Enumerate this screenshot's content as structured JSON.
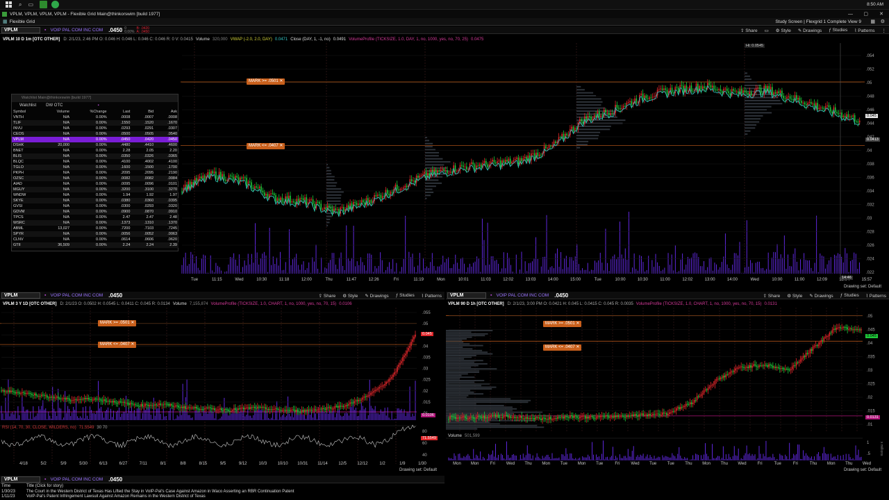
{
  "os": {
    "window_title": "VPLM, VPLM, VPLM, VPLM - Flexible Grid Main@thinkorswim [build 1977]",
    "time": "8:50 AM"
  },
  "app": {
    "layout_tab": "Flexible Grid",
    "study_screen": "Study Screen | Flexgrid 1 Complete View 9"
  },
  "toolbar": {
    "share": "Share",
    "style": "Style",
    "drawings": "Drawings",
    "studies": "Studies",
    "patterns": "Patterns",
    "drawing_set": "Drawing set: Default"
  },
  "main_chart": {
    "symbol": "VPLM",
    "description": "VOIP PAL COM INC COM",
    "price": ".0450",
    "change_top": "0",
    "change_bottom": "0.00%",
    "bid_ask_top": "B: .0420",
    "bid_ask_bottom": "A: .0450",
    "title": "VPLM 10 D 1m [OTC OTHER]",
    "ohlc": "D: 2/1/23, 2:46 PM   O: 0.046   H: 0.046   L: 0.046   C: 0.046   R: 0   V: 0.0415",
    "volume_label": "Volume",
    "volume_value": "320,000",
    "vwap": "VWAP (-2.0, 2.0, DAY)",
    "vwap_value": "0.0471",
    "close_study": "Close (DAY, 1, -1, no)",
    "close_value": "0.0491",
    "volprofile": "VolumeProfile (TICKSIZE, 1.0, DAY, 1, no, 1000, yes, no, 70, 25)",
    "volprofile_value": "0.0475",
    "mark_upper": "MARK >= .0501",
    "mark_lower": "MARK <= .0407",
    "hi_label": "Hi: 0.0545",
    "price_tag_1": "0.045",
    "price_tag_2": "0.0413",
    "time_tag": "14:46",
    "y_ticks": [
      ".054",
      ".052",
      ".05",
      ".048",
      ".046",
      ".044",
      ".042",
      ".04",
      ".038",
      ".036",
      ".034",
      ".032",
      ".03",
      ".028",
      ".026",
      ".024",
      ".022"
    ],
    "x_ticks": [
      "Tue",
      "11:15",
      "Wed",
      "10:30",
      "11:18",
      "12:00",
      "Thu",
      "11:47",
      "12:26",
      "Fri",
      "11:19",
      "Mon",
      "10:01",
      "11:03",
      "12:02",
      "13:03",
      "14:00",
      "15:00",
      "Tue",
      "10:00",
      "10:30",
      "11:00",
      "12:02",
      "13:00",
      "14:00",
      "Wed",
      "10:00",
      "11:00",
      "12:09",
      "13:04",
      "15:57"
    ]
  },
  "watchlist": {
    "window_title": "Watchlist Main@thinkorswim [build 1977]",
    "name": "Watchlist",
    "list_name": "DW OTC",
    "columns": [
      "Symbol",
      "Volume",
      "%Change",
      "Last",
      "Bid",
      "Ask"
    ],
    "rows": [
      [
        "VNTH",
        "N/A",
        "0.00%",
        ".0008",
        ".0007",
        ".0008"
      ],
      [
        "TLIF",
        "N/A",
        "0.00%",
        ".1550",
        ".1520",
        ".1670"
      ],
      [
        "INVU",
        "N/A",
        "0.00%",
        ".0293",
        ".0291",
        ".0307"
      ],
      [
        "CEOS",
        "N/A",
        "0.00%",
        ".0500",
        ".0505",
        ".0540"
      ],
      [
        "VPLM",
        "N/A",
        "0.00%",
        ".0450",
        ".0420",
        ".0450"
      ],
      [
        "DSHK",
        "20,000",
        "0.00%",
        ".4480",
        ".4410",
        ".4600"
      ],
      [
        "BNET",
        "N/A",
        "0.00%",
        "2.28",
        "2.05",
        "2.20"
      ],
      [
        "BLIS",
        "N/A",
        "0.00%",
        ".0350",
        ".0326",
        ".0365"
      ],
      [
        "BLQC",
        "N/A",
        "0.00%",
        ".4100",
        ".4002",
        ".4100"
      ],
      [
        "TGLO",
        "N/A",
        "0.00%",
        ".1600",
        ".1500",
        ".1700"
      ],
      [
        "PKPH",
        "N/A",
        "0.00%",
        ".2095",
        ".2095",
        ".2190"
      ],
      [
        "OZSC",
        "N/A",
        "0.00%",
        ".0082",
        ".0082",
        ".0084"
      ],
      [
        "AIAD",
        "N/A",
        "0.00%",
        ".0095",
        ".0096",
        ".0101"
      ],
      [
        "MGUY",
        "N/A",
        "0.00%",
        ".3200",
        ".3100",
        ".3270"
      ],
      [
        "WNDW",
        "N/A",
        "0.00%",
        "1.94",
        "1.92",
        "1.97"
      ],
      [
        "SKYE",
        "N/A",
        "0.00%",
        ".0380",
        ".0360",
        ".0395"
      ],
      [
        "GVSI",
        "N/A",
        "0.00%",
        ".0300",
        ".0293",
        ".0320"
      ],
      [
        "GDVM",
        "N/A",
        "0.00%",
        ".0900",
        ".0870",
        ".0910"
      ],
      [
        "TPCS",
        "N/A",
        "0.00%",
        "2.47",
        "2.47",
        "2.48"
      ],
      [
        "WSRC",
        "N/A",
        "0.00%",
        ".1373",
        ".1310",
        ".1370"
      ],
      [
        "ABML",
        "13,027",
        "0.00%",
        ".7200",
        ".7103",
        ".7245"
      ],
      [
        "SPYR",
        "N/A",
        "0.00%",
        ".0056",
        ".0052",
        ".0063"
      ],
      [
        "CLNV",
        "N/A",
        "0.00%",
        ".0614",
        ".0606",
        ".0620"
      ],
      [
        "GTII",
        "36,509",
        "0.00%",
        "2.24",
        "2.24",
        "2.39"
      ]
    ]
  },
  "bl_chart": {
    "symbol": "VPLM",
    "description": "VOIP PAL COM INC COM",
    "price": ".0450",
    "title": "VPLM 3 Y 1D [OTC OTHER]",
    "ohlc": "D: 2/1/23   O: 0.0502   H: 0.0545   L: 0.0411   C: 0.045   R: 0.0134",
    "volume_label": "Volume",
    "volume_value": "7,155,874",
    "volprofile": "VolumeProfile (TICKSIZE, 1.0, CHART, 1, no, 1000, yes, no, 70, 15)",
    "volprofile_value": "0.0106",
    "mark_upper": "MARK >= .0501",
    "mark_lower": "MARK <= .0407",
    "rsi": "RSI (14, 70, 30, CLOSE, WILDERS, no)",
    "rsi_value": "71.5549",
    "rsi_levels": "30   70",
    "price_tag_1": "0.045",
    "price_tag_2": "0.0106",
    "rsi_tag": "71.5549",
    "y_ticks": [
      ".055",
      ".05",
      ".045",
      ".04",
      ".035",
      ".03",
      ".025",
      ".02",
      ".015",
      ".01"
    ],
    "rsi_ticks": [
      "80",
      "60",
      "40"
    ],
    "x_ticks": [
      "4/18",
      "5/2",
      "5/9",
      "5/30",
      "6/13",
      "6/27",
      "7/11",
      "8/1",
      "8/8",
      "8/15",
      "9/5",
      "9/12",
      "10/3",
      "10/10",
      "10/31",
      "11/14",
      "12/5",
      "12/12",
      "1/2",
      "1/9",
      "1/30"
    ]
  },
  "br_chart": {
    "symbol": "VPLM",
    "description": "VOIP PAL COM INC COM",
    "price": ".0450",
    "title": "VPLM 90 D 1h [OTC OTHER]",
    "ohlc": "D: 2/1/23, 3:00 PM   O: 0.0421   H: 0.045   L: 0.0415   C: 0.045   R: 0.0035",
    "volprofile": "VolumeProfile (TICKSIZE, 1.0, CHART, 1, no, 1000, yes, no, 70, 15)",
    "volprofile_value": "0.0131",
    "mark_upper": "MARK >= .0501",
    "mark_lower": "MARK <= .0407",
    "volume_label": "Volume",
    "volume_value": "501,599",
    "price_tag_1": "0.045",
    "price_tag_2": "0.0131",
    "volume_axis": "x millions",
    "y_ticks": [
      ".05",
      ".045",
      ".04",
      ".035",
      ".03",
      ".025",
      ".02",
      ".015",
      ".01"
    ],
    "vol_ticks": [
      "1",
      ".5"
    ],
    "x_ticks": [
      "Mon",
      "Mon",
      "Fri",
      "Wed",
      "Thu",
      "Mon",
      "Tue",
      "Mon",
      "Tue",
      "Fri",
      "Wed",
      "Tue",
      "Tue",
      "Thu",
      "Mon",
      "Thu",
      "Wed",
      "Fri",
      "Tue",
      "Fri",
      "Thu",
      "Mon",
      "Thu",
      "Wed"
    ]
  },
  "news_bar": {
    "symbol": "VPLM",
    "description": "VOIP PAL COM INC COM",
    "price": ".0450",
    "header_time": "Time",
    "header_title": "Title (Click for story)",
    "items": [
      {
        "date": "1/30/23",
        "title": "The Court in the Western District of Texas Has Lifted the Stay in VoIP-Pal's Case Against Amazon in Waco Asserting an RBR Continuation Patent"
      },
      {
        "date": "1/11/23",
        "title": "VoIP-Pal's Patent Infringement Lawsuit Against Amazon Remains in the Western District of Texas"
      }
    ]
  },
  "colors": {
    "accent": "#7a1dd6",
    "mark": "#c9601c",
    "up": "#1fc93a",
    "down": "#e0262a",
    "vwap": "#35c9c9",
    "volume": "#6a2cf5"
  }
}
